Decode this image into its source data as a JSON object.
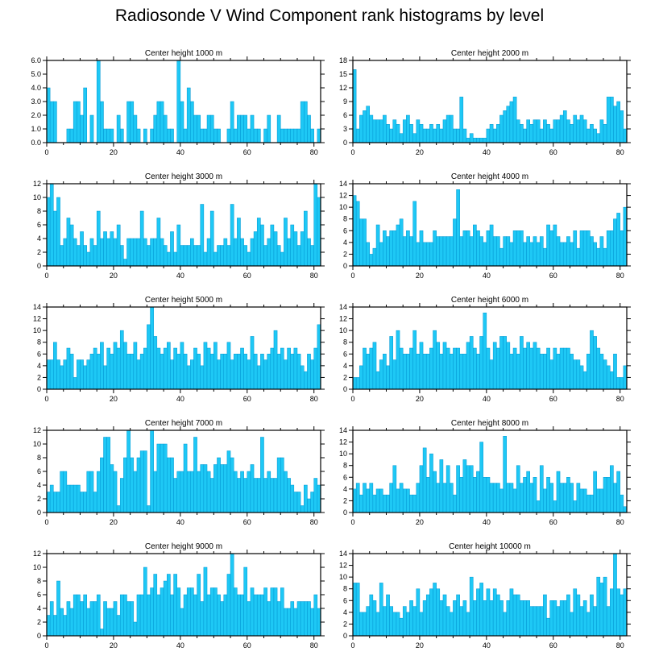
{
  "title": "Radiosonde V Wind Component rank histograms by level",
  "chart_data": [
    {
      "type": "bar",
      "title": "Center height 1000 m",
      "xlim": [
        0,
        82
      ],
      "ylim": [
        0,
        6
      ],
      "xticks": [
        0,
        20,
        40,
        60,
        80
      ],
      "yticks": [
        "0.0",
        "1.0",
        "2.0",
        "3.0",
        "4.0",
        "5.0",
        "6.0"
      ],
      "values": [
        4,
        3,
        3,
        0,
        0,
        0,
        1,
        1,
        3,
        3,
        2,
        4,
        0,
        2,
        0,
        6,
        3,
        1,
        1,
        1,
        0,
        2,
        1,
        0,
        3,
        3,
        2,
        1,
        0,
        1,
        0,
        1,
        2,
        3,
        3,
        2,
        1,
        1,
        0,
        6,
        3,
        1,
        4,
        3,
        2,
        2,
        1,
        1,
        2,
        2,
        1,
        1,
        0,
        0,
        1,
        3,
        1,
        2,
        2,
        2,
        1,
        2,
        1,
        1,
        0,
        1,
        2,
        0,
        0,
        2,
        1,
        1,
        1,
        1,
        1,
        1,
        3,
        3,
        2,
        1,
        0,
        1
      ]
    },
    {
      "type": "bar",
      "title": "Center height 2000 m",
      "xlim": [
        0,
        82
      ],
      "ylim": [
        0,
        18
      ],
      "xticks": [
        0,
        20,
        40,
        60,
        80
      ],
      "yticks": [
        "0",
        "3",
        "6",
        "9",
        "12",
        "15",
        "18"
      ],
      "values": [
        16,
        3,
        6,
        7,
        8,
        6,
        5,
        5,
        5,
        6,
        4,
        3,
        5,
        4,
        2,
        5,
        6,
        4,
        2,
        5,
        4,
        3,
        3,
        4,
        3,
        4,
        3,
        5,
        6,
        6,
        3,
        3,
        10,
        3,
        1,
        2,
        1,
        1,
        1,
        1,
        3,
        4,
        3,
        4,
        6,
        7,
        8,
        9,
        10,
        5,
        4,
        3,
        5,
        4,
        5,
        5,
        3,
        5,
        4,
        3,
        5,
        5,
        6,
        7,
        5,
        4,
        6,
        5,
        6,
        5,
        3,
        4,
        3,
        2,
        5,
        4,
        10,
        10,
        8,
        9,
        7,
        3
      ]
    },
    {
      "type": "bar",
      "title": "Center height 3000 m",
      "xlim": [
        0,
        82
      ],
      "ylim": [
        0,
        12
      ],
      "xticks": [
        0,
        20,
        40,
        60,
        80
      ],
      "yticks": [
        "0",
        "2",
        "4",
        "6",
        "8",
        "10",
        "12"
      ],
      "values": [
        10,
        12,
        8,
        10,
        3,
        4,
        7,
        6,
        4,
        3,
        5,
        3,
        2,
        4,
        3,
        8,
        4,
        5,
        4,
        5,
        4,
        6,
        3,
        1,
        4,
        4,
        4,
        4,
        8,
        4,
        3,
        4,
        4,
        7,
        4,
        3,
        2,
        5,
        2,
        6,
        3,
        3,
        3,
        4,
        3,
        3,
        9,
        2,
        4,
        8,
        2,
        3,
        3,
        4,
        3,
        9,
        4,
        7,
        4,
        3,
        2,
        4,
        5,
        7,
        6,
        3,
        4,
        6,
        5,
        3,
        2,
        7,
        4,
        6,
        5,
        3,
        5,
        8,
        4,
        3,
        12,
        10
      ]
    },
    {
      "type": "bar",
      "title": "Center height 4000 m",
      "xlim": [
        0,
        82
      ],
      "ylim": [
        0,
        14
      ],
      "xticks": [
        0,
        20,
        40,
        60,
        80
      ],
      "yticks": [
        "0",
        "2",
        "4",
        "6",
        "8",
        "10",
        "12",
        "14"
      ],
      "values": [
        12,
        11,
        8,
        8,
        4,
        2,
        3,
        7,
        4,
        6,
        5,
        6,
        6,
        7,
        8,
        5,
        6,
        5,
        11,
        4,
        6,
        4,
        4,
        4,
        6,
        5,
        5,
        5,
        5,
        5,
        8,
        13,
        5,
        6,
        6,
        5,
        7,
        6,
        5,
        4,
        6,
        7,
        5,
        5,
        3,
        5,
        5,
        4,
        6,
        6,
        6,
        4,
        5,
        4,
        5,
        4,
        5,
        3,
        7,
        6,
        7,
        5,
        4,
        4,
        5,
        4,
        6,
        3,
        6,
        6,
        6,
        5,
        4,
        3,
        5,
        3,
        6,
        6,
        8,
        9,
        6,
        10
      ]
    },
    {
      "type": "bar",
      "title": "Center height 5000 m",
      "xlim": [
        0,
        82
      ],
      "ylim": [
        0,
        14
      ],
      "xticks": [
        0,
        20,
        40,
        60,
        80
      ],
      "yticks": [
        "0",
        "2",
        "4",
        "6",
        "8",
        "10",
        "12",
        "14"
      ],
      "values": [
        5,
        5,
        8,
        5,
        4,
        5,
        7,
        6,
        2,
        5,
        5,
        4,
        5,
        6,
        7,
        6,
        8,
        4,
        7,
        6,
        8,
        7,
        10,
        8,
        6,
        6,
        8,
        5,
        6,
        7,
        11,
        14,
        9,
        7,
        6,
        7,
        8,
        5,
        7,
        6,
        8,
        6,
        4,
        5,
        7,
        6,
        4,
        8,
        7,
        6,
        8,
        5,
        6,
        6,
        8,
        5,
        6,
        6,
        7,
        6,
        5,
        9,
        6,
        4,
        6,
        5,
        6,
        7,
        10,
        6,
        7,
        5,
        7,
        6,
        7,
        6,
        4,
        3,
        6,
        5,
        7,
        11
      ]
    },
    {
      "type": "bar",
      "title": "Center height 6000 m",
      "xlim": [
        0,
        82
      ],
      "ylim": [
        0,
        14
      ],
      "xticks": [
        0,
        20,
        40,
        60,
        80
      ],
      "yticks": [
        "0",
        "2",
        "4",
        "6",
        "8",
        "10",
        "12",
        "14"
      ],
      "values": [
        2,
        2,
        4,
        7,
        6,
        7,
        8,
        3,
        5,
        6,
        4,
        9,
        5,
        10,
        7,
        6,
        6,
        7,
        10,
        6,
        8,
        6,
        6,
        7,
        10,
        8,
        6,
        8,
        7,
        6,
        7,
        7,
        6,
        6,
        8,
        9,
        7,
        6,
        9,
        13,
        7,
        5,
        8,
        7,
        9,
        9,
        8,
        6,
        7,
        6,
        9,
        7,
        8,
        7,
        8,
        7,
        6,
        6,
        7,
        5,
        7,
        6,
        7,
        7,
        7,
        6,
        5,
        5,
        4,
        3,
        6,
        10,
        9,
        7,
        6,
        5,
        4,
        3,
        6,
        2,
        2,
        4
      ]
    },
    {
      "type": "bar",
      "title": "Center height 7000 m",
      "xlim": [
        0,
        82
      ],
      "ylim": [
        0,
        12
      ],
      "xticks": [
        0,
        20,
        40,
        60,
        80
      ],
      "yticks": [
        "0",
        "2",
        "4",
        "6",
        "8",
        "10",
        "12"
      ],
      "values": [
        3,
        4,
        3,
        3,
        6,
        6,
        4,
        4,
        4,
        4,
        3,
        3,
        6,
        6,
        3,
        6,
        8,
        11,
        11,
        7,
        6,
        1,
        5,
        8,
        12,
        8,
        6,
        8,
        9,
        9,
        1,
        12,
        6,
        10,
        10,
        10,
        8,
        8,
        5,
        6,
        6,
        10,
        6,
        6,
        11,
        6,
        7,
        7,
        6,
        5,
        7,
        8,
        7,
        7,
        9,
        8,
        6,
        5,
        6,
        5,
        6,
        7,
        5,
        5,
        11,
        5,
        6,
        5,
        5,
        8,
        8,
        6,
        5,
        4,
        3,
        3,
        1,
        4,
        2,
        3,
        5,
        4
      ]
    },
    {
      "type": "bar",
      "title": "Center height 8000 m",
      "xlim": [
        0,
        82
      ],
      "ylim": [
        0,
        14
      ],
      "xticks": [
        0,
        20,
        40,
        60,
        80
      ],
      "yticks": [
        "0",
        "2",
        "4",
        "6",
        "8",
        "10",
        "12",
        "14"
      ],
      "values": [
        4,
        5,
        3,
        5,
        4,
        5,
        3,
        4,
        4,
        3,
        3,
        5,
        8,
        4,
        5,
        4,
        4,
        3,
        3,
        5,
        8,
        11,
        6,
        10,
        7,
        5,
        9,
        5,
        8,
        5,
        3,
        8,
        6,
        9,
        8,
        8,
        6,
        7,
        12,
        6,
        6,
        5,
        5,
        5,
        4,
        13,
        5,
        5,
        4,
        8,
        5,
        6,
        7,
        5,
        6,
        2,
        8,
        4,
        6,
        5,
        2,
        7,
        5,
        5,
        6,
        5,
        2,
        5,
        4,
        4,
        3,
        3,
        7,
        4,
        4,
        6,
        6,
        8,
        5,
        7,
        3,
        1
      ]
    },
    {
      "type": "bar",
      "title": "Center height 9000 m",
      "xlim": [
        0,
        82
      ],
      "ylim": [
        0,
        12
      ],
      "xticks": [
        0,
        20,
        40,
        60,
        80
      ],
      "yticks": [
        "0",
        "2",
        "4",
        "6",
        "8",
        "10",
        "12"
      ],
      "values": [
        3,
        5,
        3,
        8,
        4,
        3,
        5,
        4,
        6,
        6,
        5,
        6,
        4,
        5,
        5,
        6,
        1,
        5,
        4,
        4,
        5,
        3,
        6,
        6,
        5,
        5,
        2,
        6,
        6,
        10,
        6,
        7,
        9,
        6,
        7,
        8,
        9,
        6,
        9,
        7,
        4,
        6,
        7,
        7,
        6,
        9,
        5,
        10,
        6,
        7,
        7,
        6,
        5,
        6,
        9,
        12,
        7,
        6,
        6,
        10,
        5,
        7,
        6,
        6,
        6,
        7,
        5,
        7,
        7,
        5,
        7,
        4,
        4,
        5,
        4,
        5,
        5,
        5,
        5,
        4,
        6,
        4
      ]
    },
    {
      "type": "bar",
      "title": "Center height 10000 m",
      "xlim": [
        0,
        82
      ],
      "ylim": [
        0,
        14
      ],
      "xticks": [
        0,
        20,
        40,
        60,
        80
      ],
      "yticks": [
        "0",
        "2",
        "4",
        "6",
        "8",
        "10",
        "12",
        "14"
      ],
      "values": [
        9,
        9,
        4,
        4,
        5,
        7,
        6,
        4,
        9,
        5,
        7,
        5,
        4,
        4,
        3,
        5,
        4,
        6,
        5,
        8,
        4,
        6,
        7,
        8,
        9,
        8,
        6,
        7,
        5,
        4,
        6,
        7,
        5,
        6,
        4,
        10,
        6,
        8,
        9,
        6,
        8,
        6,
        8,
        7,
        6,
        4,
        6,
        8,
        7,
        7,
        6,
        6,
        6,
        5,
        5,
        5,
        5,
        7,
        3,
        6,
        6,
        5,
        6,
        6,
        7,
        4,
        8,
        7,
        5,
        6,
        4,
        7,
        5,
        10,
        9,
        10,
        5,
        8,
        14,
        8,
        7,
        8
      ]
    }
  ]
}
